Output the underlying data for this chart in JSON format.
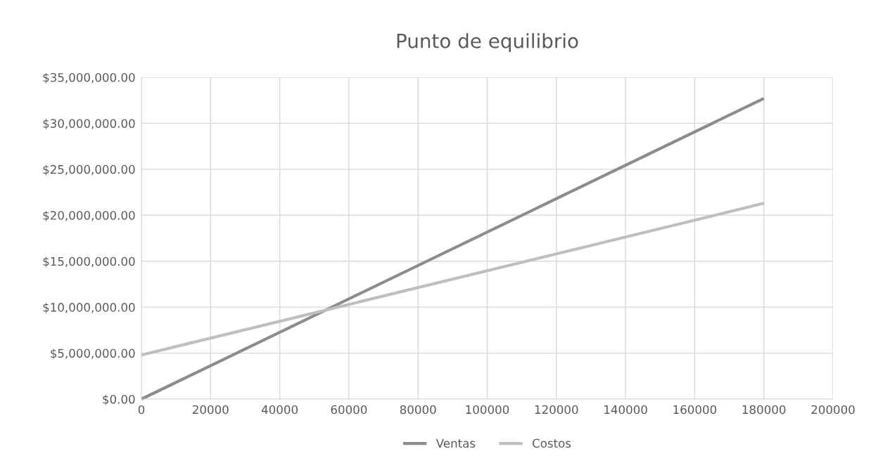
{
  "chart_data": {
    "type": "line",
    "title": "Punto de equilibrio",
    "series": [
      {
        "name": "Ventas",
        "color": "#8c8c8c",
        "values": [
          0,
          32700000
        ]
      },
      {
        "name": "Costos",
        "color": "#bfbfbf",
        "values": [
          4800000,
          21300000
        ]
      }
    ],
    "x": [
      0,
      180000
    ],
    "xlim": [
      0,
      200000
    ],
    "xticks": [
      0,
      20000,
      40000,
      60000,
      80000,
      100000,
      120000,
      140000,
      160000,
      180000,
      200000
    ],
    "ylim": [
      0,
      35000000
    ],
    "yticks": [
      {
        "value": 0,
        "label": "$0.00"
      },
      {
        "value": 5000000,
        "label": "$5,000,000.00"
      },
      {
        "value": 10000000,
        "label": "$10,000,000.00"
      },
      {
        "value": 15000000,
        "label": "$15,000,000.00"
      },
      {
        "value": 20000000,
        "label": "$20,000,000.00"
      },
      {
        "value": 25000000,
        "label": "$25,000,000.00"
      },
      {
        "value": 30000000,
        "label": "$30,000,000.00"
      },
      {
        "value": 35000000,
        "label": "$35,000,000.00"
      }
    ],
    "grid": true,
    "legend": "bottom",
    "marker": "none",
    "line_style": "solid"
  }
}
